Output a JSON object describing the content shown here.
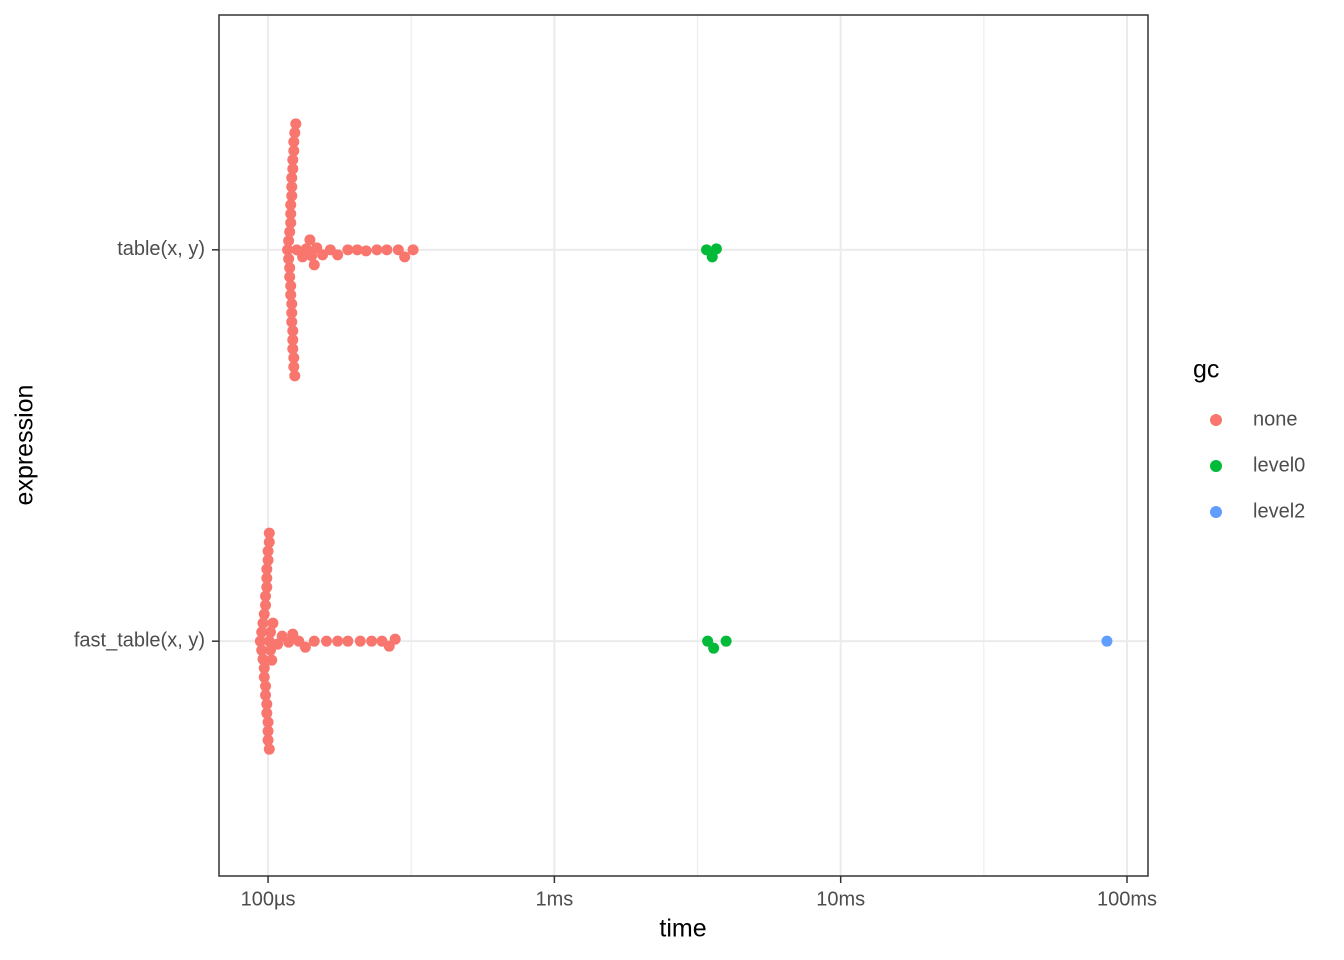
{
  "chart_data": {
    "type": "beeswarm",
    "x_label": "time",
    "y_label": "expression",
    "legend_title": "gc",
    "x_log": true,
    "grid": true,
    "legend_position": "right",
    "categories": [
      "fast_table(x, y)",
      "table(x, y)"
    ],
    "xlim": [
      67.4,
      118400
    ],
    "xticks": [
      {
        "value": 100,
        "label": "100µs"
      },
      {
        "value": 1000,
        "label": "1ms"
      },
      {
        "value": 10000,
        "label": "10ms"
      },
      {
        "value": 100000,
        "label": "100ms"
      }
    ],
    "xminor_ticks": [
      316.23,
      3162.3,
      31623
    ],
    "series": [
      {
        "name": "none",
        "color": "#f8766d",
        "values": [
          [
            94,
            95,
            95,
            96,
            96,
            97,
            97,
            97,
            98,
            98,
            98,
            98,
            99,
            99,
            99,
            99,
            99,
            100,
            100,
            100,
            100,
            100,
            101,
            101,
            101,
            101,
            102,
            102,
            103,
            104,
            108,
            112,
            118,
            122,
            128,
            135,
            145,
            160,
            175,
            190,
            210,
            230,
            250,
            265,
            278
          ],
          [
            117,
            118,
            118,
            119,
            119,
            119,
            120,
            120,
            120,
            120,
            120,
            121,
            121,
            121,
            121,
            121,
            121,
            122,
            122,
            122,
            122,
            122,
            123,
            123,
            123,
            123,
            124,
            124,
            125,
            126,
            132,
            136,
            140,
            142,
            145,
            148,
            155,
            165,
            175,
            190,
            205,
            220,
            240,
            260,
            285,
            300,
            321
          ]
        ]
      },
      {
        "name": "level0",
        "color": "#00ba38",
        "values": [
          [
            3430,
            3600,
            3980
          ],
          [
            3400,
            3560,
            3680
          ]
        ]
      },
      {
        "name": "level2",
        "color": "#619cff",
        "values": [
          [
            85100
          ],
          []
        ]
      }
    ]
  }
}
